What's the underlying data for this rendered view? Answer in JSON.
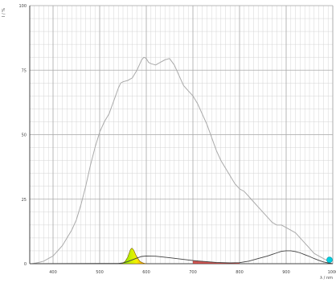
{
  "chart_data": {
    "type": "line",
    "title": "",
    "xlabel": "λ / nm",
    "ylabel": "I / %",
    "xlim": [
      350,
      1000
    ],
    "ylim": [
      0,
      100
    ],
    "x_ticks": [
      400,
      500,
      600,
      700,
      800,
      900,
      1000
    ],
    "y_ticks": [
      0,
      25,
      50,
      75,
      100
    ],
    "grid": true,
    "colors": {
      "measured": "#aaaaaa",
      "sensitivity": "#404040",
      "grid_major": "#aaaaaa",
      "grid_minor": "#d4d4d4",
      "axis": "#444444",
      "marker": "#00cfe0"
    },
    "series": [
      {
        "x": [
          355,
          370,
          380,
          390,
          400,
          410,
          420,
          430,
          440,
          450,
          460,
          470,
          480,
          490,
          500,
          505,
          510,
          520,
          530,
          540,
          545,
          550,
          560,
          570,
          580,
          590,
          595,
          600,
          605,
          610,
          620,
          630,
          640,
          650,
          660,
          670,
          680,
          690,
          700,
          710,
          720,
          730,
          740,
          750,
          760,
          770,
          780,
          790,
          800,
          810,
          820,
          830,
          840,
          850,
          860,
          870,
          880,
          890,
          900,
          910,
          920,
          930,
          940,
          950,
          960,
          970,
          980,
          990,
          1000
        ],
        "y": [
          0,
          0.5,
          1,
          2,
          3,
          5,
          7,
          10,
          13,
          17,
          23,
          30,
          38,
          45,
          51,
          53,
          55,
          58,
          63,
          68,
          70,
          70.5,
          71,
          72,
          75,
          79,
          80,
          79.5,
          78,
          77.5,
          77,
          78,
          79,
          79.5,
          77,
          73,
          69,
          67,
          65,
          62,
          58,
          54,
          49,
          44,
          40,
          37,
          34,
          31,
          29,
          28,
          26,
          24,
          22,
          20,
          18,
          16,
          15,
          15,
          14,
          13,
          12,
          10,
          8,
          6,
          4,
          3,
          2,
          1,
          1
        ]
      },
      {
        "x": [
          350,
          540,
          550,
          560,
          570,
          580,
          590,
          600,
          620,
          650,
          700,
          750,
          780,
          800,
          820,
          840,
          860,
          870,
          880,
          890,
          900,
          910,
          920,
          930,
          940,
          950,
          960,
          970,
          980,
          990,
          1000
        ],
        "y": [
          0,
          0.1,
          0.3,
          0.8,
          1.5,
          2.2,
          2.8,
          3.0,
          2.9,
          2.3,
          1.2,
          0.5,
          0.3,
          0.4,
          1.0,
          2.0,
          3.0,
          3.6,
          4.2,
          4.8,
          5.0,
          5.0,
          4.7,
          4.2,
          3.5,
          2.8,
          2.0,
          1.3,
          0.7,
          0.3,
          0
        ]
      },
      {
        "x": [
          548,
          555,
          560,
          563,
          566,
          569,
          572,
          575,
          578,
          582,
          586,
          590,
          595,
          600
        ],
        "y": [
          0,
          1,
          2.5,
          4,
          5.5,
          6,
          5.5,
          4.5,
          3.2,
          2.0,
          1.0,
          0.5,
          0.2,
          0
        ]
      }
    ],
    "annotations": [
      {
        "x": 993,
        "y": 1.5
      }
    ]
  }
}
